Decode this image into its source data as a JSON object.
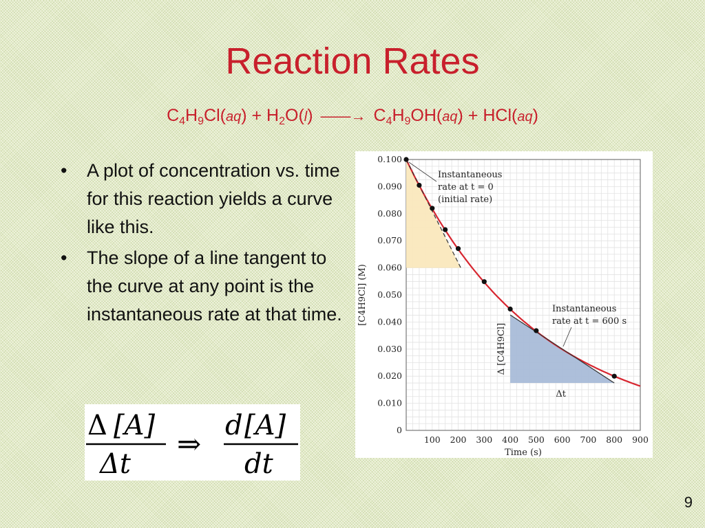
{
  "slide": {
    "title": "Reaction Rates",
    "equation": {
      "reactant1_a": "C",
      "reactant1_sub1": "4",
      "reactant1_b": "H",
      "reactant1_sub2": "9",
      "reactant1_c": "Cl",
      "state_aq": "aq",
      "plus": "+",
      "reactant2_a": "H",
      "reactant2_sub1": "2",
      "reactant2_b": "O",
      "state_l": "l",
      "arrow": "——→",
      "product1_a": "C",
      "product1_sub1": "4",
      "product1_b": "H",
      "product1_sub2": "9",
      "product1_c": "OH",
      "product2": "HCl"
    },
    "bullets": [
      "A plot of concentration vs. time for this reaction yields a curve like this.",
      "The slope of a line tangent to the curve at any point is the instantaneous rate at that time."
    ],
    "formula": {
      "delta": "Δ",
      "conc": "[A]",
      "dt_left": "Δt",
      "implies": "⇒",
      "d": "d",
      "dt_right": "dt"
    },
    "slide_number": "9"
  },
  "chart_data": {
    "type": "line",
    "xlabel": "Time (s)",
    "ylabel": "[C4H9Cl] (M)",
    "xlim": [
      0,
      900
    ],
    "ylim": [
      0,
      0.1
    ],
    "x_ticks": [
      "100",
      "200",
      "300",
      "400",
      "500",
      "600",
      "700",
      "800",
      "900"
    ],
    "y_ticks": [
      "0",
      "0.010",
      "0.020",
      "0.030",
      "0.040",
      "0.050",
      "0.060",
      "0.070",
      "0.080",
      "0.090",
      "0.100"
    ],
    "grid": true,
    "points": [
      {
        "x": 0,
        "y": 0.1
      },
      {
        "x": 50,
        "y": 0.0905
      },
      {
        "x": 100,
        "y": 0.082
      },
      {
        "x": 150,
        "y": 0.0741
      },
      {
        "x": 200,
        "y": 0.0671
      },
      {
        "x": 300,
        "y": 0.0549
      },
      {
        "x": 400,
        "y": 0.0448
      },
      {
        "x": 500,
        "y": 0.0368
      },
      {
        "x": 800,
        "y": 0.02
      }
    ],
    "curve_color": "#d7252f",
    "annotations": {
      "initial_label": [
        "Instantaneous",
        "rate at t = 0",
        "(initial rate)"
      ],
      "t600_label": [
        "Instantaneous",
        "rate at t = 600 s"
      ],
      "delta_conc_label": "Δ [C4H9Cl]",
      "delta_t_label": "Δt"
    },
    "tangent_initial": {
      "x0": 0,
      "y0": 0.1,
      "x1": 210,
      "y1": 0.06
    },
    "tangent_600": {
      "x0": 400,
      "y0": 0.0426,
      "x1": 800,
      "y1": 0.0175
    },
    "shade_initial_color": "#fae8bd",
    "shade_600_color": "#a9bcd8"
  }
}
